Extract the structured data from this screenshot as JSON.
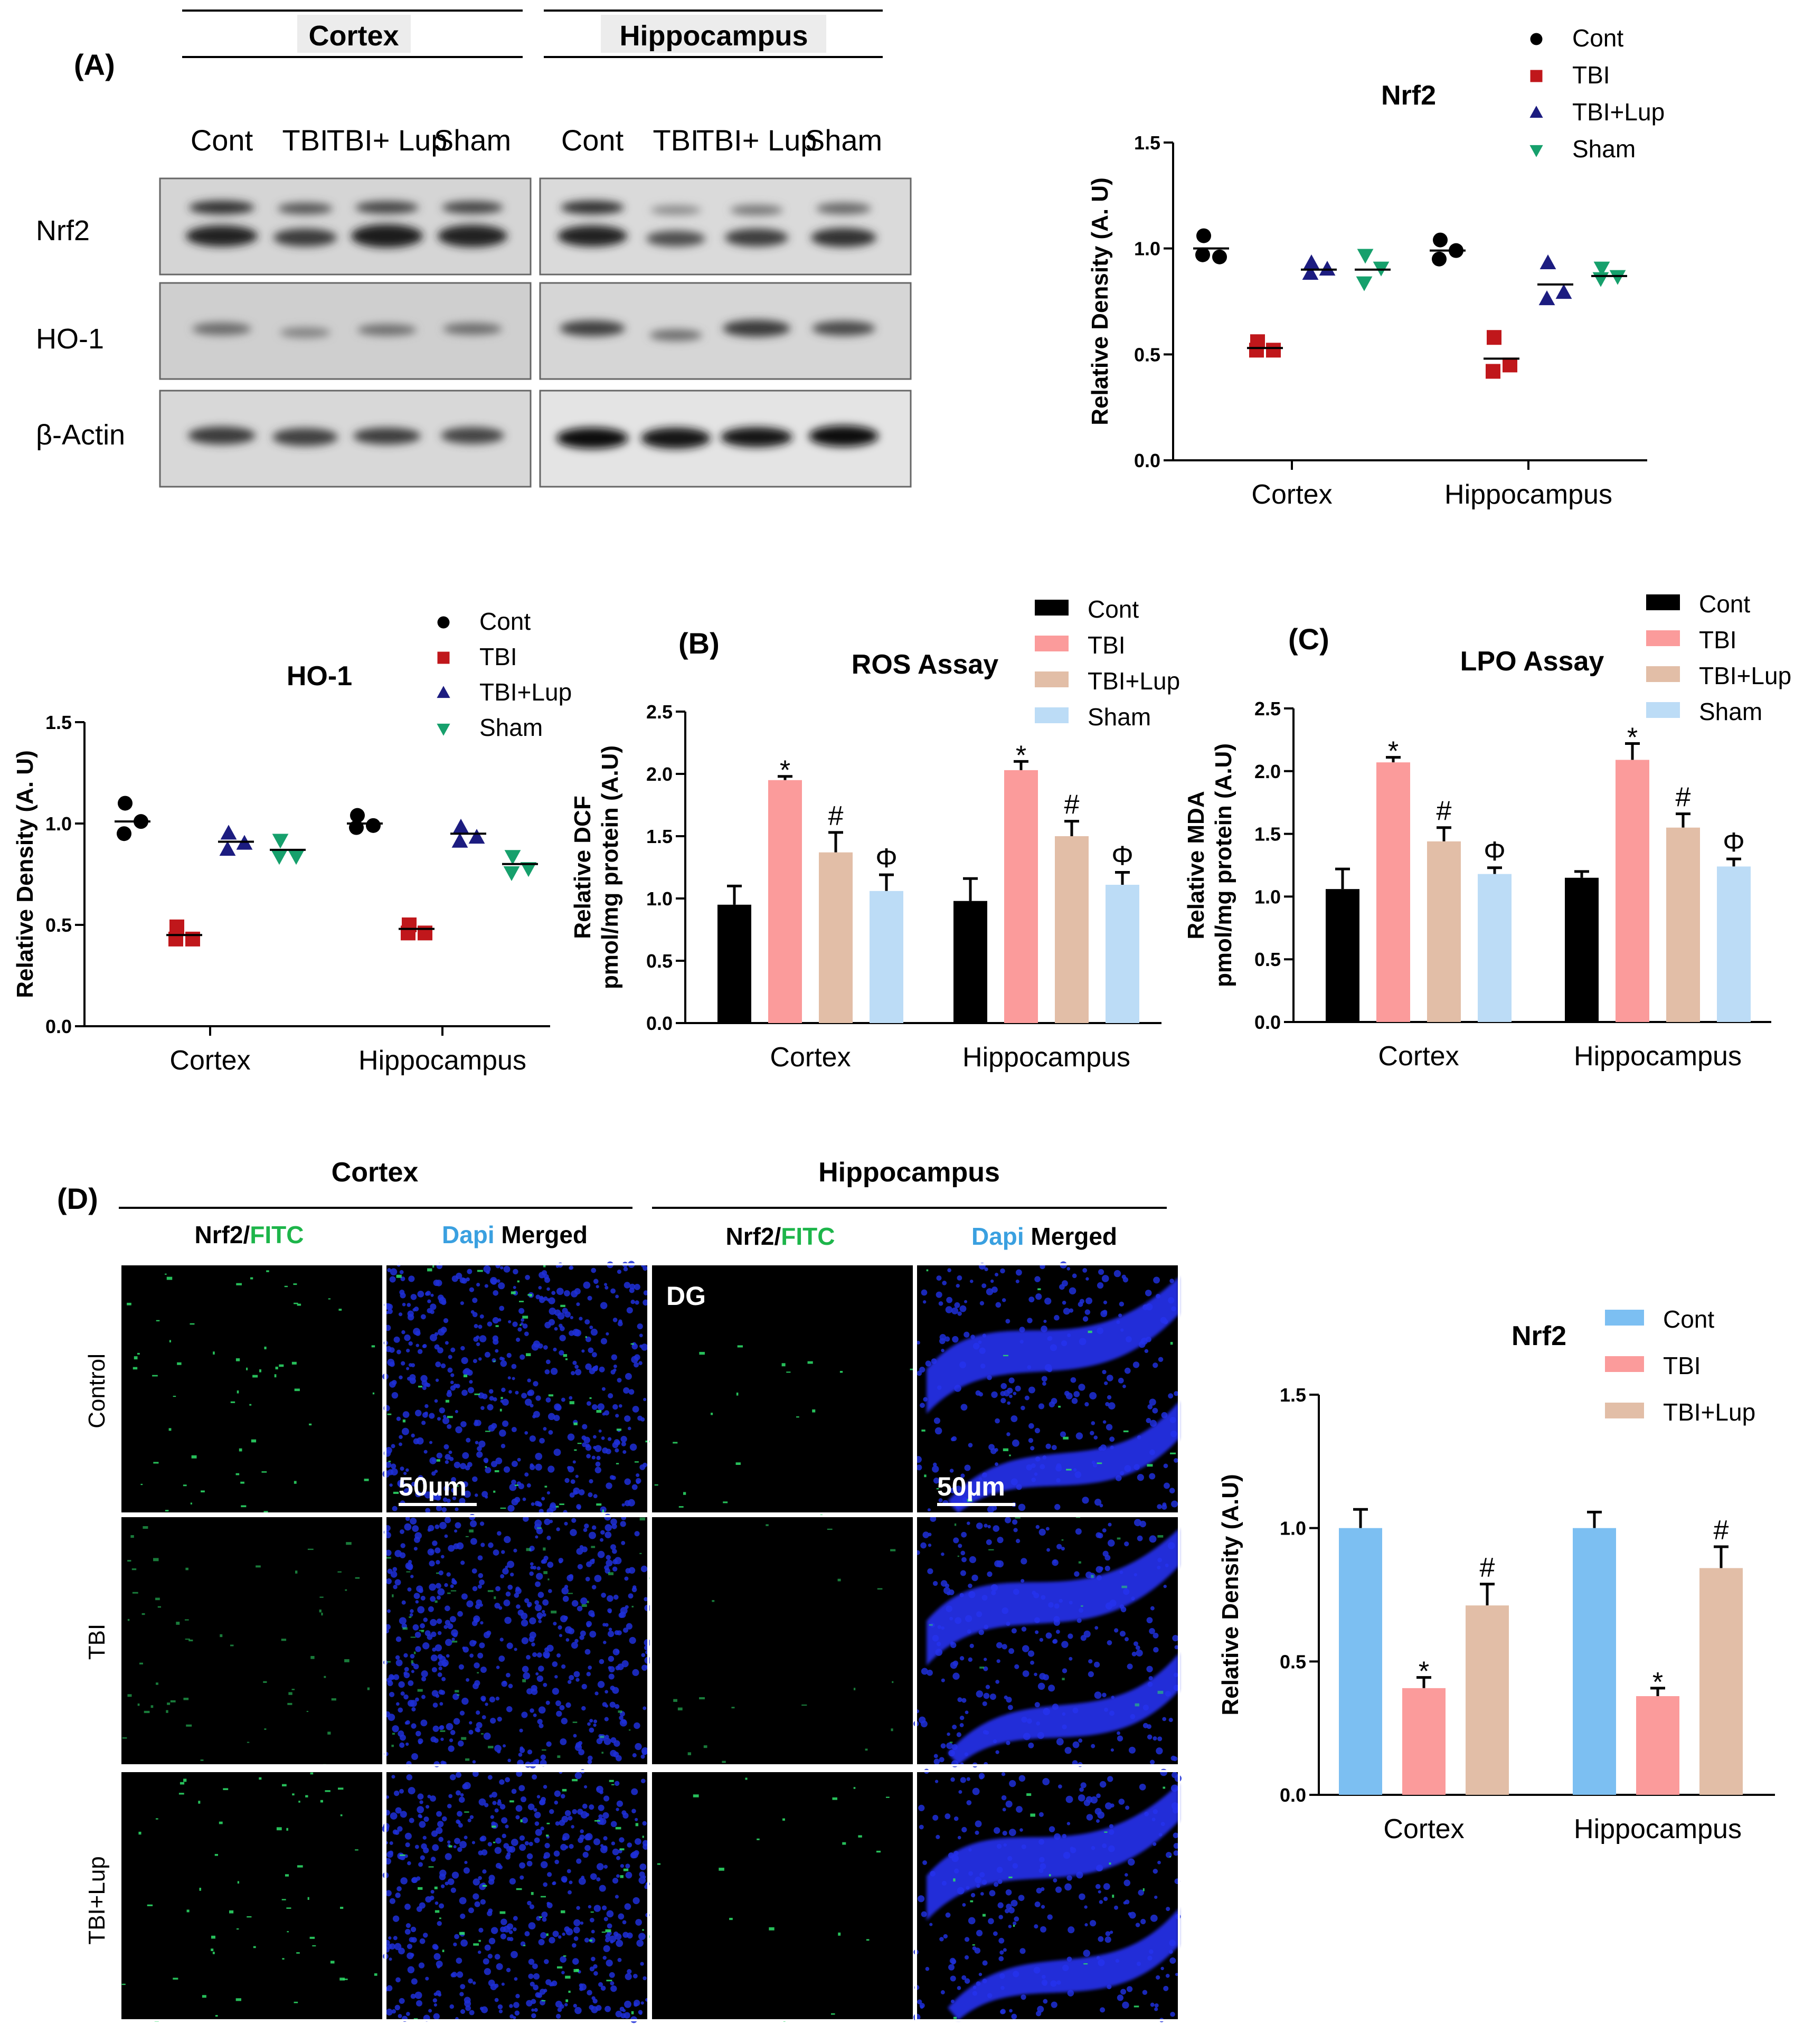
{
  "panel_labels": {
    "A": "(A)",
    "B": "(B)",
    "C": "(C)",
    "D": "(D)"
  },
  "blot": {
    "region_headers": [
      "Cortex",
      "Hippocampus"
    ],
    "lanes": [
      "Cont",
      "TBI",
      "TBI+ Lup",
      "Sham"
    ],
    "rows": [
      "Nrf2",
      "HO-1",
      "β-Actin"
    ]
  },
  "micro": {
    "region_headers": [
      "Cortex",
      "Hippocampus"
    ],
    "col_nrf2": "Nrf2/",
    "col_fitc": "FITC",
    "col_dapi": "Dapi",
    "col_merged": " Merged",
    "row_labels": [
      "Control",
      "TBI",
      "TBI+Lup"
    ],
    "dg_label": "DG",
    "scale_bar": "50µm"
  },
  "colors": {
    "cont_dot": "#000000",
    "tbi_dot": "#c0171b",
    "lup_dot": "#1c1c80",
    "sham_dot": "#16a06c",
    "bar_cont": "#000000",
    "bar_tbi": "#fb9b9b",
    "bar_lup": "#e2bea7",
    "bar_sham": "#bcdcf6",
    "bar_cont_blue": "#7cbff2",
    "fitc": "#1db54a",
    "dapi": "#3aa0e0"
  },
  "chart_data": [
    {
      "type": "scatter",
      "title": "Nrf2",
      "ylabel": "Relative Density (A. U)",
      "categories": [
        "Cortex",
        "Hippocampus"
      ],
      "ylim": [
        0,
        1.5
      ],
      "yticks": [
        0.0,
        0.5,
        1.0,
        1.5
      ],
      "legend": "top-right",
      "series": [
        {
          "name": "Cont",
          "marker": "circle",
          "color": "#000000",
          "points": [
            [
              1.06,
              0.97,
              0.96
            ],
            [
              1.04,
              0.95,
              0.99
            ]
          ],
          "means": [
            1.0,
            0.99
          ]
        },
        {
          "name": "TBI",
          "marker": "square",
          "color": "#c0171b",
          "points": [
            [
              0.56,
              0.52,
              0.52
            ],
            [
              0.58,
              0.42,
              0.45
            ]
          ],
          "means": [
            0.53,
            0.48
          ]
        },
        {
          "name": "TBI+Lup",
          "marker": "triangle-up",
          "color": "#1c1c80",
          "points": [
            [
              0.93,
              0.88,
              0.9
            ],
            [
              0.93,
              0.76,
              0.79
            ]
          ],
          "means": [
            0.9,
            0.83
          ]
        },
        {
          "name": "Sham",
          "marker": "triangle-down",
          "color": "#16a06c",
          "points": [
            [
              0.97,
              0.84,
              0.91
            ],
            [
              0.91,
              0.86,
              0.87
            ]
          ],
          "means": [
            0.9,
            0.87
          ]
        }
      ]
    },
    {
      "type": "scatter",
      "title": "HO-1",
      "ylabel": "Relative Density (A. U)",
      "categories": [
        "Cortex",
        "Hippocampus"
      ],
      "ylim": [
        0,
        1.5
      ],
      "yticks": [
        0.0,
        0.5,
        1.0,
        1.5
      ],
      "legend": "top-right",
      "series": [
        {
          "name": "Cont",
          "marker": "circle",
          "color": "#000000",
          "points": [
            [
              1.1,
              0.95,
              1.01
            ],
            [
              1.04,
              0.98,
              0.99
            ]
          ],
          "means": [
            1.01,
            1.0
          ]
        },
        {
          "name": "TBI",
          "marker": "square",
          "color": "#c0171b",
          "points": [
            [
              0.49,
              0.43,
              0.43
            ],
            [
              0.5,
              0.46,
              0.46
            ]
          ],
          "means": [
            0.45,
            0.48
          ]
        },
        {
          "name": "TBI+Lup",
          "marker": "triangle-up",
          "color": "#1c1c80",
          "points": [
            [
              0.95,
              0.87,
              0.9
            ],
            [
              0.98,
              0.91,
              0.93
            ]
          ],
          "means": [
            0.91,
            0.95
          ]
        },
        {
          "name": "Sham",
          "marker": "triangle-down",
          "color": "#16a06c",
          "points": [
            [
              0.92,
              0.84,
              0.84
            ],
            [
              0.84,
              0.76,
              0.78
            ]
          ],
          "means": [
            0.87,
            0.8
          ]
        }
      ]
    },
    {
      "type": "bar",
      "title": "ROS Assay",
      "ylabel": "Relative DCF pmol/mg protein (A.U)",
      "categories": [
        "Cortex",
        "Hippocampus"
      ],
      "ylim": [
        0,
        2.5
      ],
      "yticks": [
        0.0,
        0.5,
        1.0,
        1.5,
        2.0,
        2.5
      ],
      "legend": "top-right",
      "series": [
        {
          "name": "Cont",
          "values": [
            0.95,
            0.98
          ],
          "errors": [
            0.15,
            0.18
          ],
          "sig": [
            "",
            ""
          ]
        },
        {
          "name": "TBI",
          "values": [
            1.95,
            2.03
          ],
          "errors": [
            0.03,
            0.07
          ],
          "sig": [
            "*",
            "*"
          ]
        },
        {
          "name": "TBI+Lup",
          "values": [
            1.37,
            1.5
          ],
          "errors": [
            0.16,
            0.12
          ],
          "sig": [
            "#",
            "#"
          ]
        },
        {
          "name": "Sham",
          "values": [
            1.06,
            1.11
          ],
          "errors": [
            0.13,
            0.1
          ],
          "sig": [
            "Φ",
            "Φ"
          ]
        }
      ]
    },
    {
      "type": "bar",
      "title": "LPO Assay",
      "ylabel": "Relative MDA pmol/mg protein (A.U)",
      "categories": [
        "Cortex",
        "Hippocampus"
      ],
      "ylim": [
        0,
        2.5
      ],
      "yticks": [
        0.0,
        0.5,
        1.0,
        1.5,
        2.0,
        2.5
      ],
      "legend": "top-right",
      "series": [
        {
          "name": "Cont",
          "values": [
            1.06,
            1.15
          ],
          "errors": [
            0.16,
            0.05
          ],
          "sig": [
            "",
            ""
          ]
        },
        {
          "name": "TBI",
          "values": [
            2.07,
            2.09
          ],
          "errors": [
            0.04,
            0.13
          ],
          "sig": [
            "*",
            "*"
          ]
        },
        {
          "name": "TBI+Lup",
          "values": [
            1.44,
            1.55
          ],
          "errors": [
            0.11,
            0.11
          ],
          "sig": [
            "#",
            "#"
          ]
        },
        {
          "name": "Sham",
          "values": [
            1.18,
            1.24
          ],
          "errors": [
            0.05,
            0.06
          ],
          "sig": [
            "Φ",
            "Φ"
          ]
        }
      ]
    },
    {
      "type": "bar",
      "title": "Nrf2",
      "ylabel": "Relative Density (A.U)",
      "categories": [
        "Cortex",
        "Hippocampus"
      ],
      "ylim": [
        0,
        1.5
      ],
      "yticks": [
        0.0,
        0.5,
        1.0,
        1.5
      ],
      "legend": "top-right",
      "series": [
        {
          "name": "Cont",
          "values": [
            1.0,
            1.0
          ],
          "errors": [
            0.07,
            0.06
          ],
          "sig": [
            "",
            ""
          ]
        },
        {
          "name": "TBI",
          "values": [
            0.4,
            0.37
          ],
          "errors": [
            0.04,
            0.03
          ],
          "sig": [
            "*",
            "*"
          ]
        },
        {
          "name": "TBI+Lup",
          "values": [
            0.71,
            0.85
          ],
          "errors": [
            0.08,
            0.08
          ],
          "sig": [
            "#",
            "#"
          ]
        }
      ]
    }
  ]
}
